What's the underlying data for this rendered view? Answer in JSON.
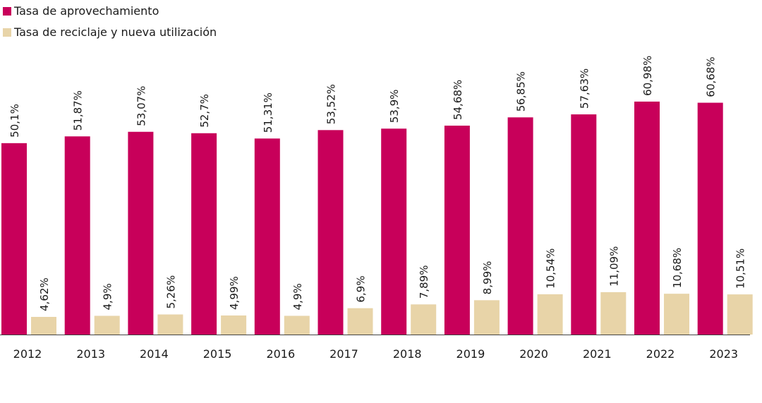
{
  "chart_data": {
    "type": "bar",
    "title": "",
    "xlabel": "",
    "ylabel": "",
    "ylim": [
      0,
      63
    ],
    "grid": false,
    "legend_position": "top-left",
    "categories": [
      "2012",
      "2013",
      "2014",
      "2015",
      "2016",
      "2017",
      "2018",
      "2019",
      "2020",
      "2021",
      "2022",
      "2023"
    ],
    "series": [
      {
        "name": "Tasa de aprovechamiento",
        "color": "#c8005a",
        "values": [
          50.1,
          51.87,
          53.07,
          52.7,
          51.31,
          53.52,
          53.9,
          54.68,
          56.85,
          57.63,
          60.98,
          60.68
        ],
        "labels": [
          "50,1%",
          "51,87%",
          "53,07%",
          "52,7%",
          "51,31%",
          "53,52%",
          "53,9%",
          "54,68%",
          "56,85%",
          "57,63%",
          "60,98%",
          "60,68%"
        ]
      },
      {
        "name": "Tasa de reciclaje y nueva utilización",
        "color": "#e8d4a8",
        "values": [
          4.62,
          4.9,
          5.26,
          4.99,
          4.9,
          6.9,
          7.89,
          8.99,
          10.54,
          11.09,
          10.68,
          10.51
        ],
        "labels": [
          "4,62%",
          "4,9%",
          "5,26%",
          "4,99%",
          "4,9%",
          "6,9%",
          "7,89%",
          "8,99%",
          "10,54%",
          "11,09%",
          "10,68%",
          "10,51%"
        ]
      }
    ]
  }
}
